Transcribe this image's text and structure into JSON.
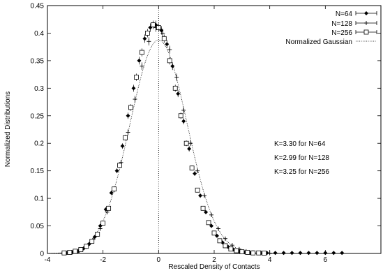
{
  "chart_data": {
    "type": "scatter",
    "title": "",
    "xlabel": "Rescaled Density of Contacts",
    "ylabel": "Normalized Distributions",
    "xlim": [
      -4,
      8
    ],
    "ylim": [
      0,
      0.45
    ],
    "xticks": [
      -4,
      -2,
      0,
      2,
      4,
      6
    ],
    "yticks": [
      0,
      0.05,
      0.1,
      0.15,
      0.2,
      0.25,
      0.3,
      0.35,
      0.4,
      0.45
    ],
    "grid": false,
    "legend_position": "top-right",
    "vertical_line_x": 0,
    "annotations": [
      "K=3.30 for N=64",
      "K=2.99 for N=128",
      "K=3.25 for N=256"
    ],
    "series": [
      {
        "name": "N=64",
        "marker": "diamond",
        "x": [
          -3.3,
          -3.1,
          -2.9,
          -2.7,
          -2.5,
          -2.3,
          -2.1,
          -1.9,
          -1.7,
          -1.5,
          -1.3,
          -1.1,
          -0.9,
          -0.7,
          -0.5,
          -0.3,
          -0.1,
          0.1,
          0.3,
          0.5,
          0.7,
          0.9,
          1.1,
          1.3,
          1.5,
          1.7,
          1.9,
          2.1,
          2.3,
          2.5,
          2.7,
          2.9,
          3.1,
          3.3,
          3.6,
          3.9,
          4.2,
          4.5,
          4.8,
          5.1,
          5.4,
          5.7,
          6.0,
          6.3,
          6.6
        ],
        "y": [
          0.001,
          0.002,
          0.004,
          0.009,
          0.017,
          0.03,
          0.05,
          0.08,
          0.11,
          0.15,
          0.195,
          0.25,
          0.3,
          0.35,
          0.39,
          0.41,
          0.415,
          0.405,
          0.38,
          0.34,
          0.29,
          0.24,
          0.19,
          0.145,
          0.105,
          0.075,
          0.05,
          0.032,
          0.02,
          0.012,
          0.007,
          0.004,
          0.002,
          0.001,
          0.001,
          0.001,
          0.001,
          0.001,
          0.001,
          0.001,
          0.001,
          0.001,
          0.001,
          0.001,
          0.001
        ]
      },
      {
        "name": "N=128",
        "marker": "plus",
        "x": [
          -3.1,
          -2.85,
          -2.6,
          -2.35,
          -2.1,
          -1.85,
          -1.6,
          -1.35,
          -1.1,
          -0.85,
          -0.6,
          -0.35,
          -0.1,
          0.15,
          0.4,
          0.65,
          0.9,
          1.15,
          1.4,
          1.65,
          1.9,
          2.15,
          2.4,
          2.65,
          2.9,
          3.15,
          3.4,
          3.7,
          4.0
        ],
        "y": [
          0.002,
          0.005,
          0.012,
          0.025,
          0.045,
          0.075,
          0.115,
          0.165,
          0.22,
          0.28,
          0.34,
          0.385,
          0.41,
          0.4,
          0.37,
          0.32,
          0.26,
          0.2,
          0.15,
          0.105,
          0.07,
          0.045,
          0.027,
          0.015,
          0.008,
          0.004,
          0.002,
          0.001,
          0.0005
        ]
      },
      {
        "name": "N=256",
        "marker": "square",
        "x": [
          -3.4,
          -3.2,
          -3.0,
          -2.8,
          -2.6,
          -2.4,
          -2.2,
          -2.0,
          -1.8,
          -1.6,
          -1.4,
          -1.2,
          -1.0,
          -0.8,
          -0.6,
          -0.4,
          -0.2,
          0.0,
          0.2,
          0.4,
          0.6,
          0.8,
          1.0,
          1.2,
          1.4,
          1.6,
          1.8,
          2.0,
          2.2,
          2.4,
          2.6,
          2.8,
          3.0,
          3.2,
          3.4,
          3.6,
          3.8
        ],
        "y": [
          0.001,
          0.002,
          0.004,
          0.007,
          0.013,
          0.022,
          0.035,
          0.055,
          0.082,
          0.117,
          0.16,
          0.21,
          0.265,
          0.32,
          0.365,
          0.4,
          0.415,
          0.41,
          0.39,
          0.35,
          0.3,
          0.25,
          0.2,
          0.155,
          0.115,
          0.082,
          0.056,
          0.037,
          0.023,
          0.014,
          0.008,
          0.005,
          0.003,
          0.002,
          0.001,
          0.001,
          0.0005
        ]
      },
      {
        "name": "Normalized Gaussian",
        "type": "line",
        "style": "dotted",
        "function": "gaussian",
        "mean": 0,
        "sigma": 1.03
      }
    ]
  }
}
